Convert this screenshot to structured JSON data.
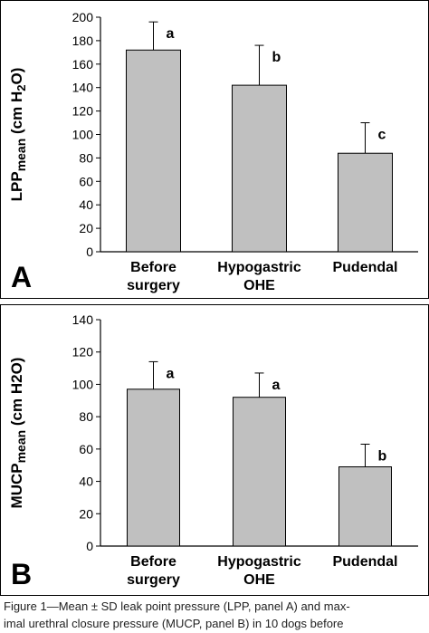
{
  "chart_data": [
    {
      "type": "bar",
      "panel_label": "A",
      "ylabel_main": "LPP",
      "ylabel_sub": "mean",
      "ylabel_unit": "(cm H",
      "ylabel_unit_sub": "2",
      "ylabel_unit_end": "O)",
      "categories": [
        [
          "Before",
          "surgery"
        ],
        [
          "Hypogastric",
          "OHE"
        ],
        [
          "Pudendal"
        ]
      ],
      "values": [
        172,
        142,
        84
      ],
      "errors": [
        24,
        34,
        26
      ],
      "letters": [
        "a",
        "b",
        "c"
      ],
      "ylim": [
        0,
        200
      ],
      "yticks": [
        0,
        20,
        40,
        60,
        80,
        100,
        120,
        140,
        160,
        180,
        200
      ],
      "bar_color": "#c0c0c0"
    },
    {
      "type": "bar",
      "panel_label": "B",
      "ylabel_main": "MUCP",
      "ylabel_sub": "mean",
      "ylabel_unit": "(cm H2O)",
      "categories": [
        [
          "Before",
          "surgery"
        ],
        [
          "Hypogastric",
          "OHE"
        ],
        [
          "Pudendal"
        ]
      ],
      "values": [
        97,
        92,
        49
      ],
      "errors": [
        17,
        15,
        14
      ],
      "letters": [
        "a",
        "a",
        "b"
      ],
      "ylim": [
        0,
        140
      ],
      "yticks": [
        0,
        20,
        40,
        60,
        80,
        100,
        120,
        140
      ],
      "bar_color": "#c0c0c0"
    }
  ],
  "caption": {
    "line1": "Figure 1—Mean ± SD leak point pressure (LPP, panel A) and max-",
    "line2": "imal urethral closure pressure (MUCP, panel B) in 10 dogs before"
  }
}
